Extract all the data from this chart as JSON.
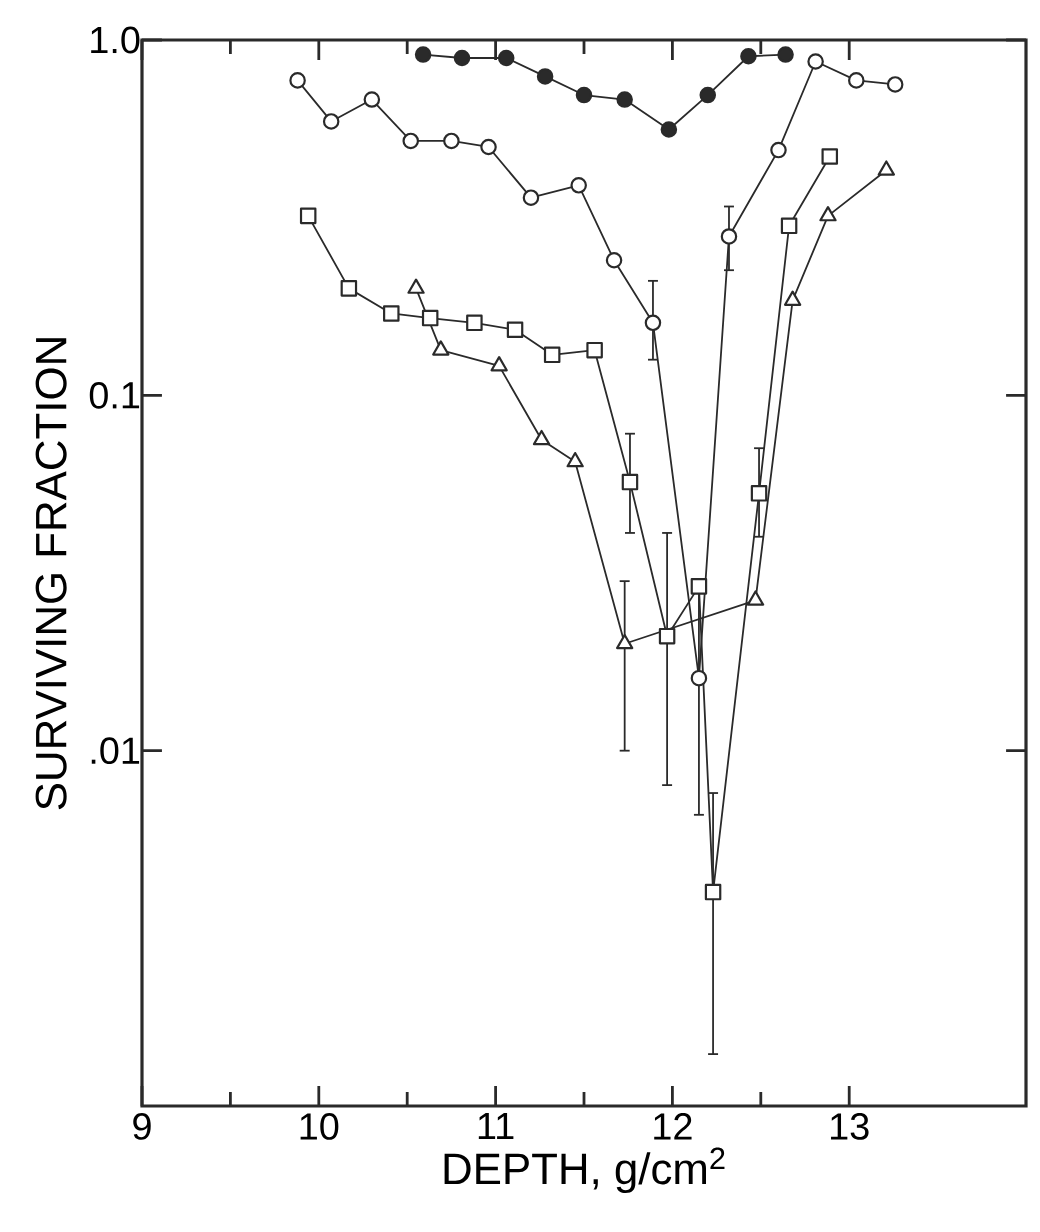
{
  "chart_data": {
    "type": "line",
    "xlabel": "DEPTH, g/cm$^{2}$",
    "ylabel": "SURVIVING FRACTION",
    "log": "y",
    "xlim": [
      9,
      14
    ],
    "xticks": [
      9,
      10,
      11,
      12,
      13
    ],
    "ylim": [
      0.001,
      1
    ],
    "yticks": [
      {
        "value": 1,
        "label": "1.0"
      },
      {
        "value": 0.1,
        "label": "0.1"
      },
      {
        "value": 0.01,
        "label": ".01"
      }
    ],
    "grid": false,
    "line_style": "solid",
    "series": [
      {
        "color": "#2a2a2a",
        "marker": "circle",
        "x": [
          10.59,
          10.81,
          11.06,
          11.28,
          11.5,
          11.73,
          11.98,
          12.2,
          12.43,
          12.64
        ],
        "values": [
          0.91,
          0.89,
          0.89,
          0.79,
          0.7,
          0.68,
          0.56,
          0.7,
          0.9,
          0.91
        ]
      },
      {
        "color": "#2a2a2a",
        "marker": "circle",
        "x": [
          9.88,
          10.07,
          10.3,
          10.52,
          10.75,
          10.96,
          11.2,
          11.47,
          11.67,
          11.89,
          12.15,
          12.32,
          12.6,
          12.81,
          13.04,
          13.26
        ],
        "values": [
          0.77,
          0.59,
          0.68,
          0.52,
          0.52,
          0.5,
          0.36,
          0.39,
          0.24,
          0.16,
          0.016,
          0.28,
          0.49,
          0.87,
          0.77,
          0.75
        ],
        "errors": [
          null,
          null,
          null,
          null,
          null,
          null,
          null,
          null,
          null,
          [
            0.126,
            0.21
          ],
          [
            0.0066,
            0.03
          ],
          [
            0.225,
            0.34
          ],
          null,
          null,
          null,
          null
        ]
      },
      {
        "color": "#2a2a2a",
        "marker": "square",
        "x": [
          9.94,
          10.17,
          10.41,
          10.63,
          10.88,
          11.11,
          11.32,
          11.56,
          11.76,
          11.97,
          12.15,
          12.23,
          12.49,
          12.66,
          12.89
        ],
        "values": [
          0.32,
          0.2,
          0.17,
          0.165,
          0.16,
          0.153,
          0.13,
          0.134,
          0.057,
          0.021,
          0.029,
          0.004,
          0.053,
          0.3,
          0.47
        ],
        "errors": [
          null,
          null,
          null,
          null,
          null,
          null,
          null,
          null,
          [
            0.041,
            0.078
          ],
          [
            0.008,
            0.041
          ],
          null,
          [
            0.0014,
            0.0076
          ],
          [
            0.04,
            0.071
          ],
          null,
          null
        ]
      },
      {
        "color": "#2a2a2a",
        "marker": "triangle",
        "x": [
          10.55,
          10.69,
          11.02,
          11.26,
          11.45,
          11.73,
          12.47,
          12.68,
          12.88,
          13.21
        ],
        "values": [
          0.2,
          0.134,
          0.121,
          0.075,
          0.065,
          0.02,
          0.0265,
          0.185,
          0.32,
          0.43
        ],
        "errors": [
          null,
          null,
          null,
          null,
          null,
          [
            0.01,
            0.03
          ],
          null,
          null,
          null,
          null
        ]
      }
    ]
  }
}
